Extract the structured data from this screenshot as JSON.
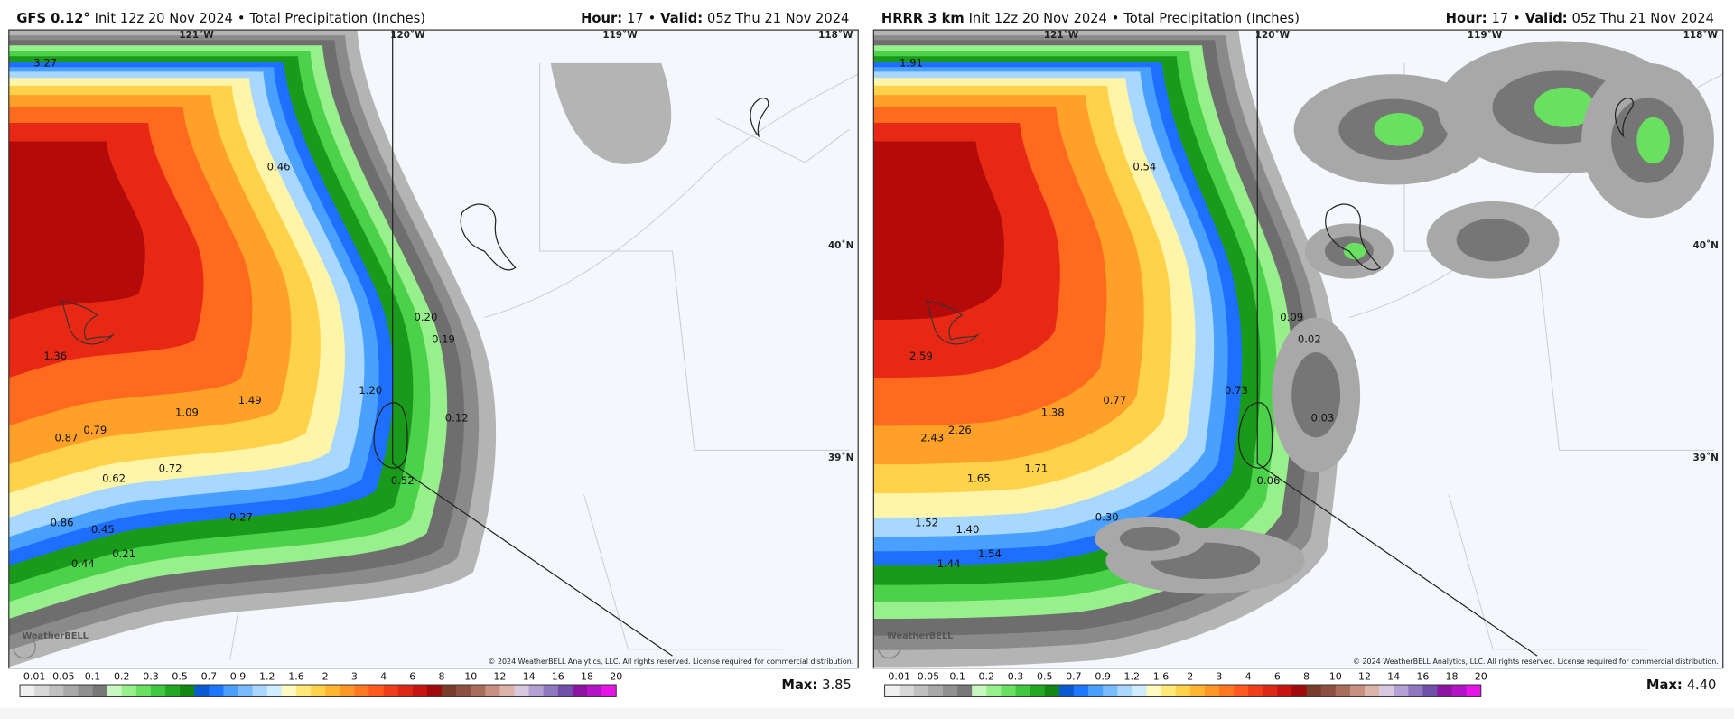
{
  "panels": [
    {
      "model": "GFS 0.12°",
      "init": "Init 12z 20 Nov 2024",
      "separator": "•",
      "product": "Total Precipitation (Inches)",
      "hour_label": "Hour:",
      "hour": "17",
      "valid_label": "Valid:",
      "valid": "05z Thu 21 Nov 2024",
      "lon_labels": [
        "121˚W",
        "120˚W",
        "119˚W",
        "118˚W"
      ],
      "lat_labels": [
        "40˚N",
        "39˚N"
      ],
      "point_values": [
        "3.27",
        "0.46",
        "0.20",
        "0.19",
        "1.36",
        "1.20",
        "1.49",
        "1.09",
        "0.12",
        "0.79",
        "0.87",
        "0.72",
        "0.52",
        "0.62",
        "0.27",
        "0.86",
        "0.45",
        "0.21",
        "0.44"
      ],
      "logo": "WeatherBELL",
      "copyright": "© 2024 WeatherBELL Analytics, LLC. All rights reserved. License required for commercial distribution.",
      "colorbar_labels": [
        "0.01",
        "0.05",
        "0.1",
        "0.2",
        "0.3",
        "0.5",
        "0.7",
        "0.9",
        "1.2",
        "1.6",
        "2",
        "3",
        "4",
        "6",
        "8",
        "10",
        "12",
        "14",
        "16",
        "18",
        "20"
      ],
      "max_label": "Max:",
      "max": "3.85"
    },
    {
      "model": "HRRR 3 km",
      "init": "Init 12z 20 Nov 2024",
      "separator": "•",
      "product": "Total Precipitation (Inches)",
      "hour_label": "Hour:",
      "hour": "17",
      "valid_label": "Valid:",
      "valid": "05z Thu 21 Nov 2024",
      "lon_labels": [
        "121˚W",
        "120˚W",
        "119˚W",
        "118˚W"
      ],
      "lat_labels": [
        "40˚N",
        "39˚N"
      ],
      "point_values": [
        "1.91",
        "0.54",
        "0.09",
        "0.02",
        "2.59",
        "0.73",
        "0.77",
        "1.38",
        "0.03",
        "2.43",
        "2.26",
        "1.65",
        "1.71",
        "0.06",
        "0.30",
        "1.52",
        "1.40",
        "1.54",
        "1.44"
      ],
      "logo": "WeatherBELL",
      "copyright": "© 2024 WeatherBELL Analytics, LLC. All rights reserved. License required for commercial distribution.",
      "colorbar_labels": [
        "0.01",
        "0.05",
        "0.1",
        "0.2",
        "0.3",
        "0.5",
        "0.7",
        "0.9",
        "1.2",
        "1.6",
        "2",
        "3",
        "4",
        "6",
        "8",
        "10",
        "12",
        "14",
        "16",
        "18",
        "20"
      ],
      "max_label": "Max:",
      "max": "4.40"
    }
  ]
}
